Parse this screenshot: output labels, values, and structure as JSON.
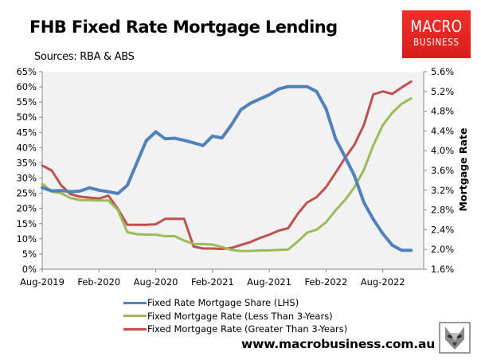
{
  "header": {
    "title": "FHB Fixed Rate Mortgage Lending",
    "subtitle": "Sources: RBA & ABS",
    "logo": {
      "line1": "MACRO",
      "line2": "BUSINESS",
      "color": "#e52420"
    }
  },
  "footer": {
    "website": "www.macrobusiness.com.au",
    "mascot": "wolf-icon"
  },
  "colors": {
    "plot_background": "#f2f2f2",
    "axis": "#868686",
    "share": "#4f81bd",
    "less3": "#9bbb59",
    "greater3": "#c0504d"
  },
  "legend": [
    {
      "label": "Fixed Rate Mortgage Share (LHS)",
      "color": "#4f81bd"
    },
    {
      "label": "Fixed Mortgage Rate (Less Than 3-Years)",
      "color": "#9bbb59"
    },
    {
      "label": "Fixed Mortgage Rate (Greater Than 3-Years)",
      "color": "#c0504d"
    }
  ],
  "chart_data": {
    "type": "line",
    "title": "FHB Fixed Rate Mortgage Lending",
    "subtitle": "Sources: RBA & ABS",
    "xlabel": "",
    "ylabel_left": "",
    "ylabel_right": "Mortgage Rate",
    "x_tick_labels": [
      "Aug-2019",
      "Feb-2020",
      "Aug-2020",
      "Feb-2021",
      "Aug-2021",
      "Feb-2022",
      "Aug-2022"
    ],
    "y_left_ticks": [
      "0%",
      "5%",
      "10%",
      "15%",
      "20%",
      "25%",
      "30%",
      "35%",
      "40%",
      "45%",
      "50%",
      "55%",
      "60%",
      "65%"
    ],
    "y_right_ticks": [
      "1.6%",
      "2.0%",
      "2.4%",
      "2.8%",
      "3.2%",
      "3.6%",
      "4.0%",
      "4.4%",
      "4.8%",
      "5.2%",
      "5.6%"
    ],
    "ylim_left": [
      0,
      65
    ],
    "ylim_right": [
      1.6,
      5.6
    ],
    "grid": false,
    "legend_position": "bottom",
    "x": [
      "Aug-2019",
      "Sep-2019",
      "Oct-2019",
      "Nov-2019",
      "Dec-2019",
      "Jan-2020",
      "Feb-2020",
      "Mar-2020",
      "Apr-2020",
      "May-2020",
      "Jun-2020",
      "Jul-2020",
      "Aug-2020",
      "Sep-2020",
      "Oct-2020",
      "Nov-2020",
      "Dec-2020",
      "Jan-2021",
      "Feb-2021",
      "Mar-2021",
      "Apr-2021",
      "May-2021",
      "Jun-2021",
      "Jul-2021",
      "Aug-2021",
      "Sep-2021",
      "Oct-2021",
      "Nov-2021",
      "Dec-2021",
      "Jan-2022",
      "Feb-2022",
      "Mar-2022",
      "Apr-2022",
      "May-2022",
      "Jun-2022",
      "Jul-2022",
      "Aug-2022",
      "Sep-2022",
      "Oct-2022",
      "Nov-2022"
    ],
    "series": [
      {
        "name": "Fixed Rate Mortgage Share (LHS)",
        "axis": "left",
        "unit": "%",
        "color": "#4f81bd",
        "values": [
          26.8,
          25.8,
          25.9,
          25.5,
          25.7,
          26.8,
          26.0,
          25.5,
          24.9,
          27.6,
          35.0,
          42.3,
          45.2,
          42.9,
          43.1,
          42.4,
          41.6,
          40.7,
          43.8,
          43.2,
          47.5,
          52.5,
          54.6,
          56.0,
          57.4,
          59.3,
          60.1,
          60.1,
          60.1,
          58.5,
          52.8,
          43.0,
          37.0,
          30.8,
          22.0,
          16.4,
          11.7,
          7.9,
          6.2,
          6.2
        ]
      },
      {
        "name": "Fixed Mortgage Rate (Less Than 3-Years)",
        "axis": "right",
        "unit": "%",
        "color": "#9bbb59",
        "values": [
          3.33,
          3.17,
          3.14,
          3.04,
          3.0,
          3.0,
          2.99,
          2.99,
          2.8,
          2.35,
          2.31,
          2.3,
          2.3,
          2.27,
          2.27,
          2.18,
          2.11,
          2.11,
          2.1,
          2.05,
          1.99,
          1.97,
          1.97,
          1.98,
          1.98,
          1.99,
          2.0,
          2.16,
          2.34,
          2.4,
          2.55,
          2.79,
          3.0,
          3.26,
          3.61,
          4.11,
          4.52,
          4.77,
          4.95,
          5.06
        ]
      },
      {
        "name": "Fixed Mortgage Rate (Greater Than 3-Years)",
        "axis": "right",
        "unit": "%",
        "color": "#c0504d",
        "values": [
          3.7,
          3.6,
          3.3,
          3.12,
          3.07,
          3.05,
          3.03,
          3.09,
          2.82,
          2.5,
          2.5,
          2.5,
          2.51,
          2.62,
          2.62,
          2.62,
          2.06,
          2.02,
          2.02,
          2.01,
          2.03,
          2.09,
          2.15,
          2.23,
          2.3,
          2.38,
          2.43,
          2.72,
          2.95,
          3.06,
          3.26,
          3.55,
          3.85,
          4.12,
          4.52,
          5.14,
          5.2,
          5.15,
          5.28,
          5.4
        ]
      }
    ]
  }
}
